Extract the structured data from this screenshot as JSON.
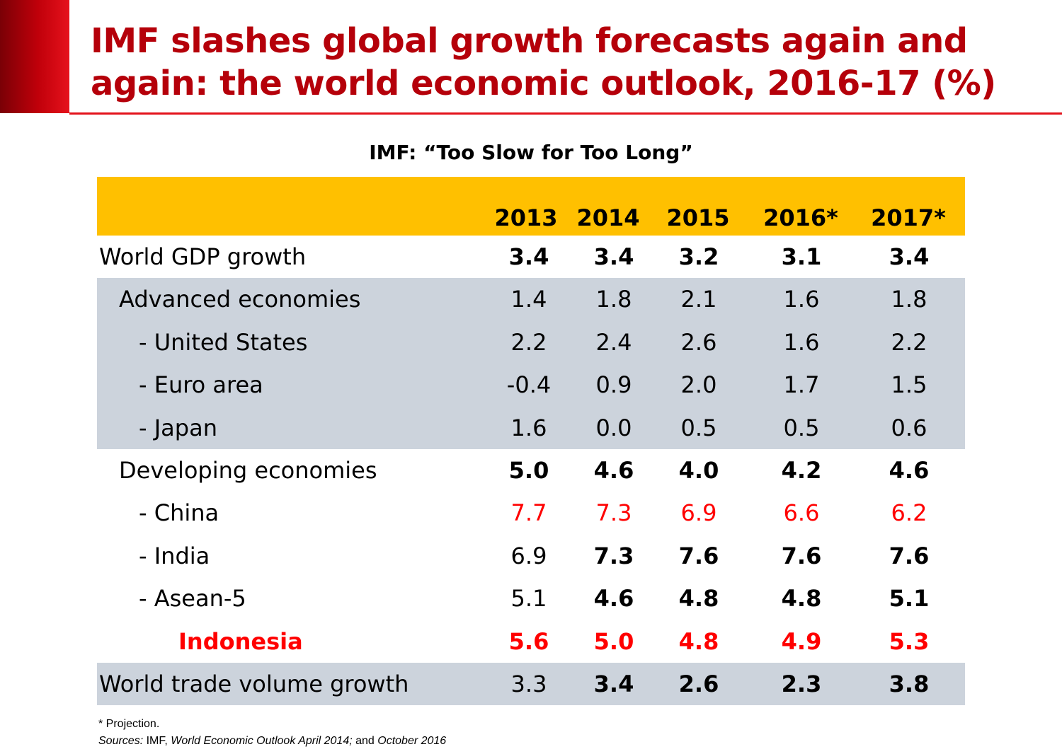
{
  "slide": {
    "title": "IMF slashes global growth forecasts again and again: the world economic outlook, 2016-17 (%)",
    "subtitle": "IMF: “Too Slow for Too Long”"
  },
  "colors": {
    "title": "#b5000a",
    "accent_bar": "#c0000a",
    "header_fill": "#ffc000",
    "row_shade": "#ccd3dc",
    "highlight": "#ff0000"
  },
  "table": {
    "columns": [
      "2013",
      "2014",
      "2015",
      "2016*",
      "2017*"
    ],
    "rows": [
      {
        "label": "World GDP growth",
        "indent": 0,
        "shaded": false,
        "label_bold": false,
        "red": false,
        "values": [
          "3.4",
          "3.4",
          "3.2",
          "3.1",
          "3.4"
        ],
        "bold": [
          true,
          true,
          true,
          true,
          true
        ]
      },
      {
        "label": "Advanced economies",
        "indent": 1,
        "shaded": true,
        "label_bold": false,
        "red": false,
        "values": [
          "1.4",
          "1.8",
          "2.1",
          "1.6",
          "1.8"
        ],
        "bold": [
          false,
          false,
          false,
          false,
          false
        ]
      },
      {
        "label": "- United States",
        "indent": 2,
        "shaded": true,
        "label_bold": false,
        "red": false,
        "values": [
          "2.2",
          "2.4",
          "2.6",
          "1.6",
          "2.2"
        ],
        "bold": [
          false,
          false,
          false,
          false,
          false
        ]
      },
      {
        "label": "- Euro area",
        "indent": 2,
        "shaded": true,
        "label_bold": false,
        "red": false,
        "values": [
          "-0.4",
          "0.9",
          "2.0",
          "1.7",
          "1.5"
        ],
        "bold": [
          false,
          false,
          false,
          false,
          false
        ]
      },
      {
        "label": "- Japan",
        "indent": 2,
        "shaded": true,
        "label_bold": false,
        "red": false,
        "values": [
          "1.6",
          "0.0",
          "0.5",
          "0.5",
          "0.6"
        ],
        "bold": [
          false,
          false,
          false,
          false,
          false
        ]
      },
      {
        "label": "Developing economies",
        "indent": 1,
        "shaded": false,
        "label_bold": false,
        "red": false,
        "values": [
          "5.0",
          "4.6",
          "4.0",
          "4.2",
          "4.6"
        ],
        "bold": [
          true,
          true,
          true,
          true,
          true
        ]
      },
      {
        "label": "- China",
        "indent": 2,
        "shaded": false,
        "label_bold": false,
        "red": true,
        "label_red": false,
        "values": [
          "7.7",
          "7.3",
          "6.9",
          "6.6",
          "6.2"
        ],
        "bold": [
          false,
          false,
          false,
          false,
          false
        ]
      },
      {
        "label": "- India",
        "indent": 2,
        "shaded": false,
        "label_bold": false,
        "red": false,
        "values": [
          "6.9",
          "7.3",
          "7.6",
          "7.6",
          "7.6"
        ],
        "bold": [
          false,
          true,
          true,
          true,
          true
        ]
      },
      {
        "label": "- Asean-5",
        "indent": 2,
        "shaded": false,
        "label_bold": false,
        "red": false,
        "values": [
          "5.1",
          "4.6",
          "4.8",
          "4.8",
          "5.1"
        ],
        "bold": [
          false,
          true,
          true,
          true,
          true
        ]
      },
      {
        "label": "Indonesia",
        "indent": 4,
        "shaded": false,
        "label_bold": true,
        "red": true,
        "label_red": true,
        "values": [
          "5.6",
          "5.0",
          "4.8",
          "4.9",
          "5.3"
        ],
        "bold": [
          true,
          true,
          true,
          true,
          true
        ]
      },
      {
        "label": "World trade volume growth",
        "indent": 0,
        "shaded": true,
        "label_bold": false,
        "red": false,
        "values": [
          "3.3",
          "3.4",
          "2.6",
          "2.3",
          "3.8"
        ],
        "bold": [
          false,
          true,
          true,
          true,
          true
        ]
      }
    ]
  },
  "footnotes": {
    "projection": "* Projection.",
    "sources_label": "Sources:",
    "sources_org": " IMF, ",
    "source1": "World Economic Outlook April 2014;",
    "sources_and": " and ",
    "source2": "October 2016"
  }
}
